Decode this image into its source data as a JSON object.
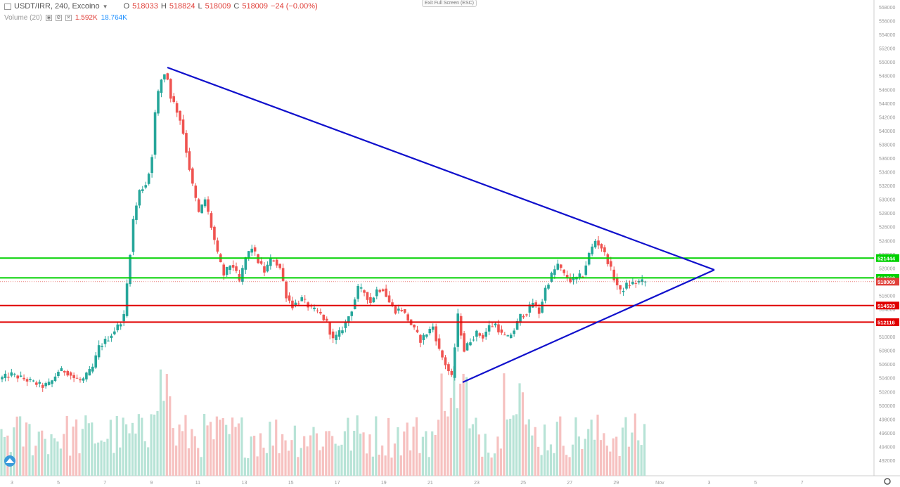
{
  "header": {
    "symbol": "USDT/IRR, 240, Excoino",
    "open_label": "O",
    "open": "518033",
    "high_label": "H",
    "high": "518824",
    "low_label": "L",
    "low": "518009",
    "close_label": "C",
    "close": "518009",
    "change": "−24 (−0.00%)"
  },
  "volume": {
    "label": "Volume (20)",
    "v1": "1.592K",
    "v2": "18.764K"
  },
  "exit_fullscreen": "Exit Full Screen (ESC)",
  "time_axis": [
    "3",
    "5",
    "7",
    "9",
    "11",
    "13",
    "15",
    "17",
    "19",
    "21",
    "23",
    "25",
    "27",
    "29",
    "Nov",
    "3",
    "5",
    "7"
  ],
  "price_axis": [
    "558000",
    "556000",
    "554000",
    "552000",
    "550000",
    "548000",
    "546000",
    "544000",
    "542000",
    "540000",
    "538000",
    "536000",
    "534000",
    "532000",
    "530000",
    "528000",
    "526000",
    "524000",
    "522000",
    "520000",
    "518000",
    "516000",
    "514000",
    "512000",
    "510000",
    "508000",
    "506000",
    "504000",
    "502000",
    "500000",
    "498000",
    "496000",
    "494000",
    "492000"
  ],
  "levels": [
    {
      "label": "521444",
      "value": 521444,
      "color": "#00d100"
    },
    {
      "label": "518560",
      "value": 518560,
      "color": "#00d100"
    },
    {
      "label": "514533",
      "value": 514533,
      "color": "#e00000"
    },
    {
      "label": "512116",
      "value": 512116,
      "color": "#e00000"
    }
  ],
  "last_price": {
    "label": "518009",
    "value": 518009,
    "color": "#e0403a"
  },
  "colors": {
    "up": "#26a69a",
    "down": "#ef5350",
    "trend": "#1010cc"
  }
}
